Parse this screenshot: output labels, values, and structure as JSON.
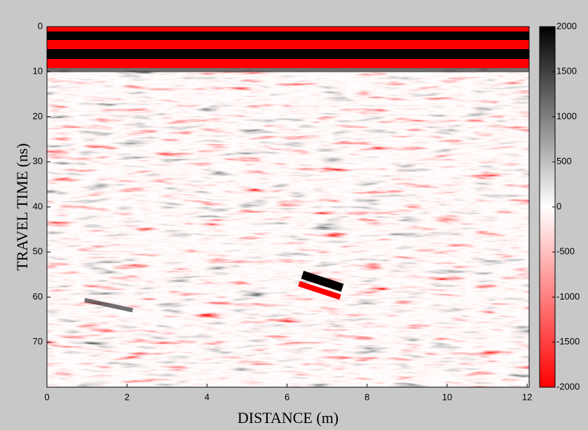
{
  "chart_data": {
    "type": "heatmap",
    "xlabel": "DISTANCE (m)",
    "ylabel": "TRAVEL TIME (ns)",
    "xlim": [
      0,
      12.05
    ],
    "xticks": [
      0,
      2,
      4,
      6,
      8,
      10,
      12
    ],
    "ylim": [
      0,
      80
    ],
    "yticks": [
      0,
      10,
      20,
      30,
      40,
      50,
      60,
      70
    ],
    "y_inverted": true,
    "colorbar": {
      "lim": [
        -2000,
        2000
      ],
      "ticks": [
        -2000,
        -1500,
        -1000,
        -500,
        0,
        500,
        1000,
        1500,
        2000
      ],
      "colors": [
        "#ff0000",
        "#ffffff",
        "#000000"
      ]
    }
  }
}
